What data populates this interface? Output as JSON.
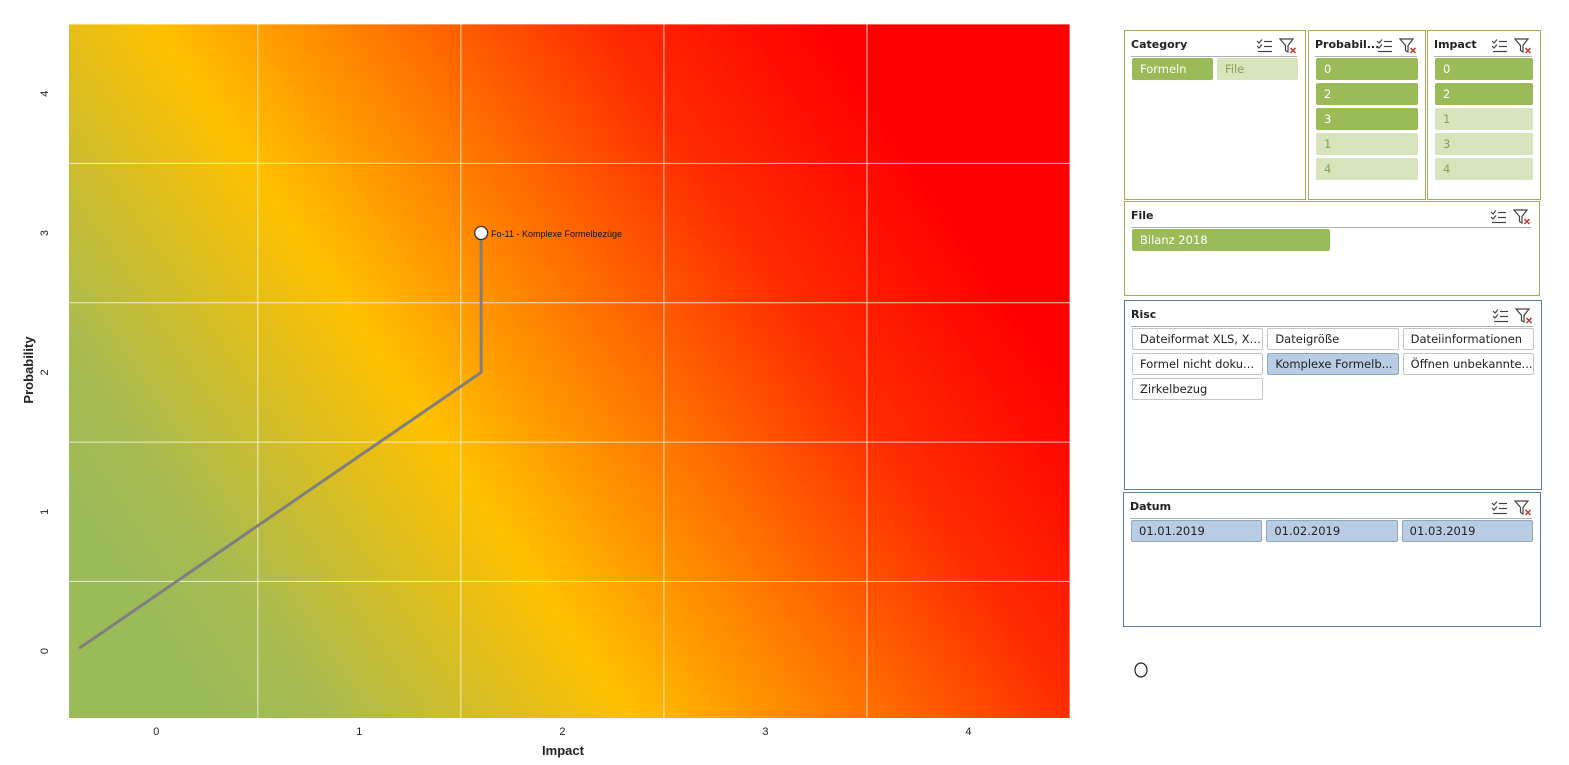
{
  "chart": {
    "xlabel": "Impact",
    "ylabel": "Probability",
    "x_ticks": [
      "0",
      "1",
      "2",
      "3",
      "4"
    ],
    "y_ticks": [
      "0",
      "1",
      "2",
      "3",
      "4"
    ],
    "gridlines": true,
    "background": "heatmap gradient green-yellow-orange-red",
    "colors": {
      "green": "#9bbb59",
      "yellow": "#ffc000",
      "orange": "#ff7a00",
      "red": "#ff0000",
      "line": "#7f7f7f"
    }
  },
  "chart_data": {
    "type": "line",
    "xlabel": "Impact",
    "ylabel": "Probability",
    "xlim": [
      -0.43,
      4.5
    ],
    "ylim": [
      -0.48,
      4.5
    ],
    "x_tick_values": [
      0,
      1,
      2,
      3,
      4
    ],
    "y_tick_values": [
      0,
      1,
      2,
      3,
      4
    ],
    "series": [
      {
        "points": [
          {
            "x": -0.38,
            "y": 0.02,
            "label": ""
          },
          {
            "x": 1.6,
            "y": 2.0,
            "label": ""
          },
          {
            "x": 1.6,
            "y": 3.0,
            "label": "Fo-11 - Komplexe Formelbezüge"
          }
        ]
      }
    ]
  },
  "slicers": {
    "category": {
      "title": "Category",
      "items": [
        {
          "label": "Formeln",
          "selected": true
        },
        {
          "label": "File",
          "selected": false
        }
      ]
    },
    "probability": {
      "title": "Probabil...",
      "items": [
        {
          "label": "0",
          "selected": true
        },
        {
          "label": "2",
          "selected": true
        },
        {
          "label": "3",
          "selected": true
        },
        {
          "label": "1",
          "selected": false
        },
        {
          "label": "4",
          "selected": false
        }
      ]
    },
    "impact": {
      "title": "Impact",
      "items": [
        {
          "label": "0",
          "selected": true
        },
        {
          "label": "2",
          "selected": true
        },
        {
          "label": "1",
          "selected": false
        },
        {
          "label": "3",
          "selected": false
        },
        {
          "label": "4",
          "selected": false
        }
      ]
    },
    "file": {
      "title": "File",
      "items": [
        {
          "label": "Bilanz 2018",
          "selected": true
        }
      ]
    },
    "risc": {
      "title": "Risc",
      "items": [
        {
          "label": "Dateiformat XLS, XL...",
          "selected": false
        },
        {
          "label": "Dateigröße",
          "selected": false
        },
        {
          "label": "Dateiinformationen",
          "selected": false
        },
        {
          "label": "Formel nicht doku...",
          "selected": false
        },
        {
          "label": "Komplexe Formelb...",
          "selected": true
        },
        {
          "label": "Öffnen unbekannte...",
          "selected": false
        },
        {
          "label": "Zirkelbezug",
          "selected": false
        }
      ]
    },
    "datum": {
      "title": "Datum",
      "items": [
        {
          "label": "01.01.2019",
          "selected": true
        },
        {
          "label": "01.02.2019",
          "selected": true
        },
        {
          "label": "01.03.2019",
          "selected": true
        }
      ]
    }
  },
  "icons": {
    "multi_select": "multi-select-icon",
    "clear_filter": "clear-filter-icon",
    "cursor": "mouse-cursor-icon"
  }
}
